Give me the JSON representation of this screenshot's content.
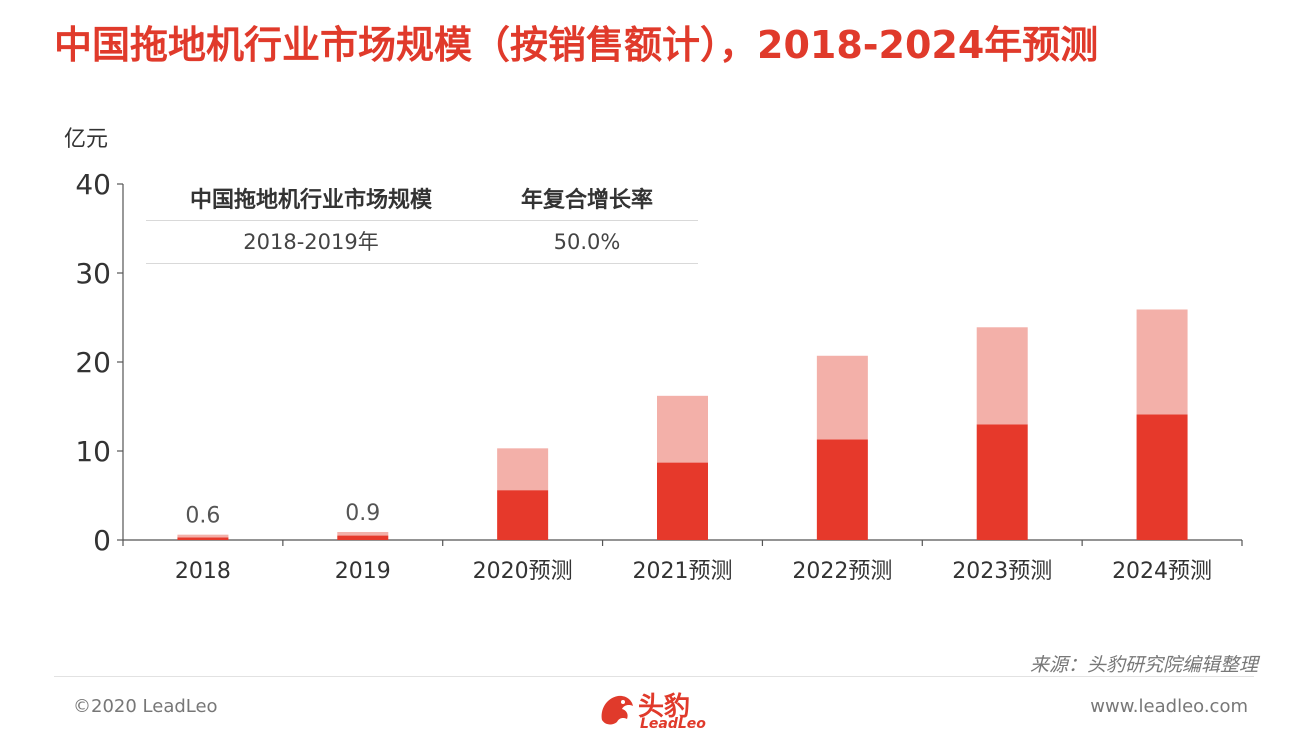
{
  "title": "中国拖地机行业市场规模（按销售额计），2018-2024年预测",
  "unit_label": "亿元",
  "cagr_table": {
    "headers": [
      "中国拖地机行业市场规模",
      "年复合增长率"
    ],
    "rows": [
      {
        "period": "2018-2019年",
        "rate": "50.0%"
      }
    ]
  },
  "chart_data": {
    "type": "bar",
    "stacked": true,
    "categories": [
      "2018",
      "2019",
      "2020预测",
      "2021预测",
      "2022预测",
      "2023预测",
      "2024预测"
    ],
    "ylim": [
      0,
      40
    ],
    "yticks": [
      "0",
      "10",
      "20",
      "30",
      "40"
    ],
    "series": [
      {
        "values": [
          0.3,
          0.5,
          5.6,
          8.7,
          11.3,
          13.0,
          14.1
        ],
        "color": "#e6392b"
      },
      {
        "values": [
          0.3,
          0.4,
          4.7,
          7.5,
          9.4,
          10.9,
          11.8
        ],
        "color": "#f3b0a9"
      }
    ],
    "data_labels": [
      "0.6",
      "0.9",
      "",
      "",
      "",
      "",
      ""
    ],
    "grid": false,
    "legend": "none"
  },
  "source": "来源：头豹研究院编辑整理",
  "footer": {
    "copyright": "©2020 LeadLeo",
    "website": "www.leadleo.com",
    "logo_name": "头豹",
    "logo_sub": "LeadLeo"
  }
}
